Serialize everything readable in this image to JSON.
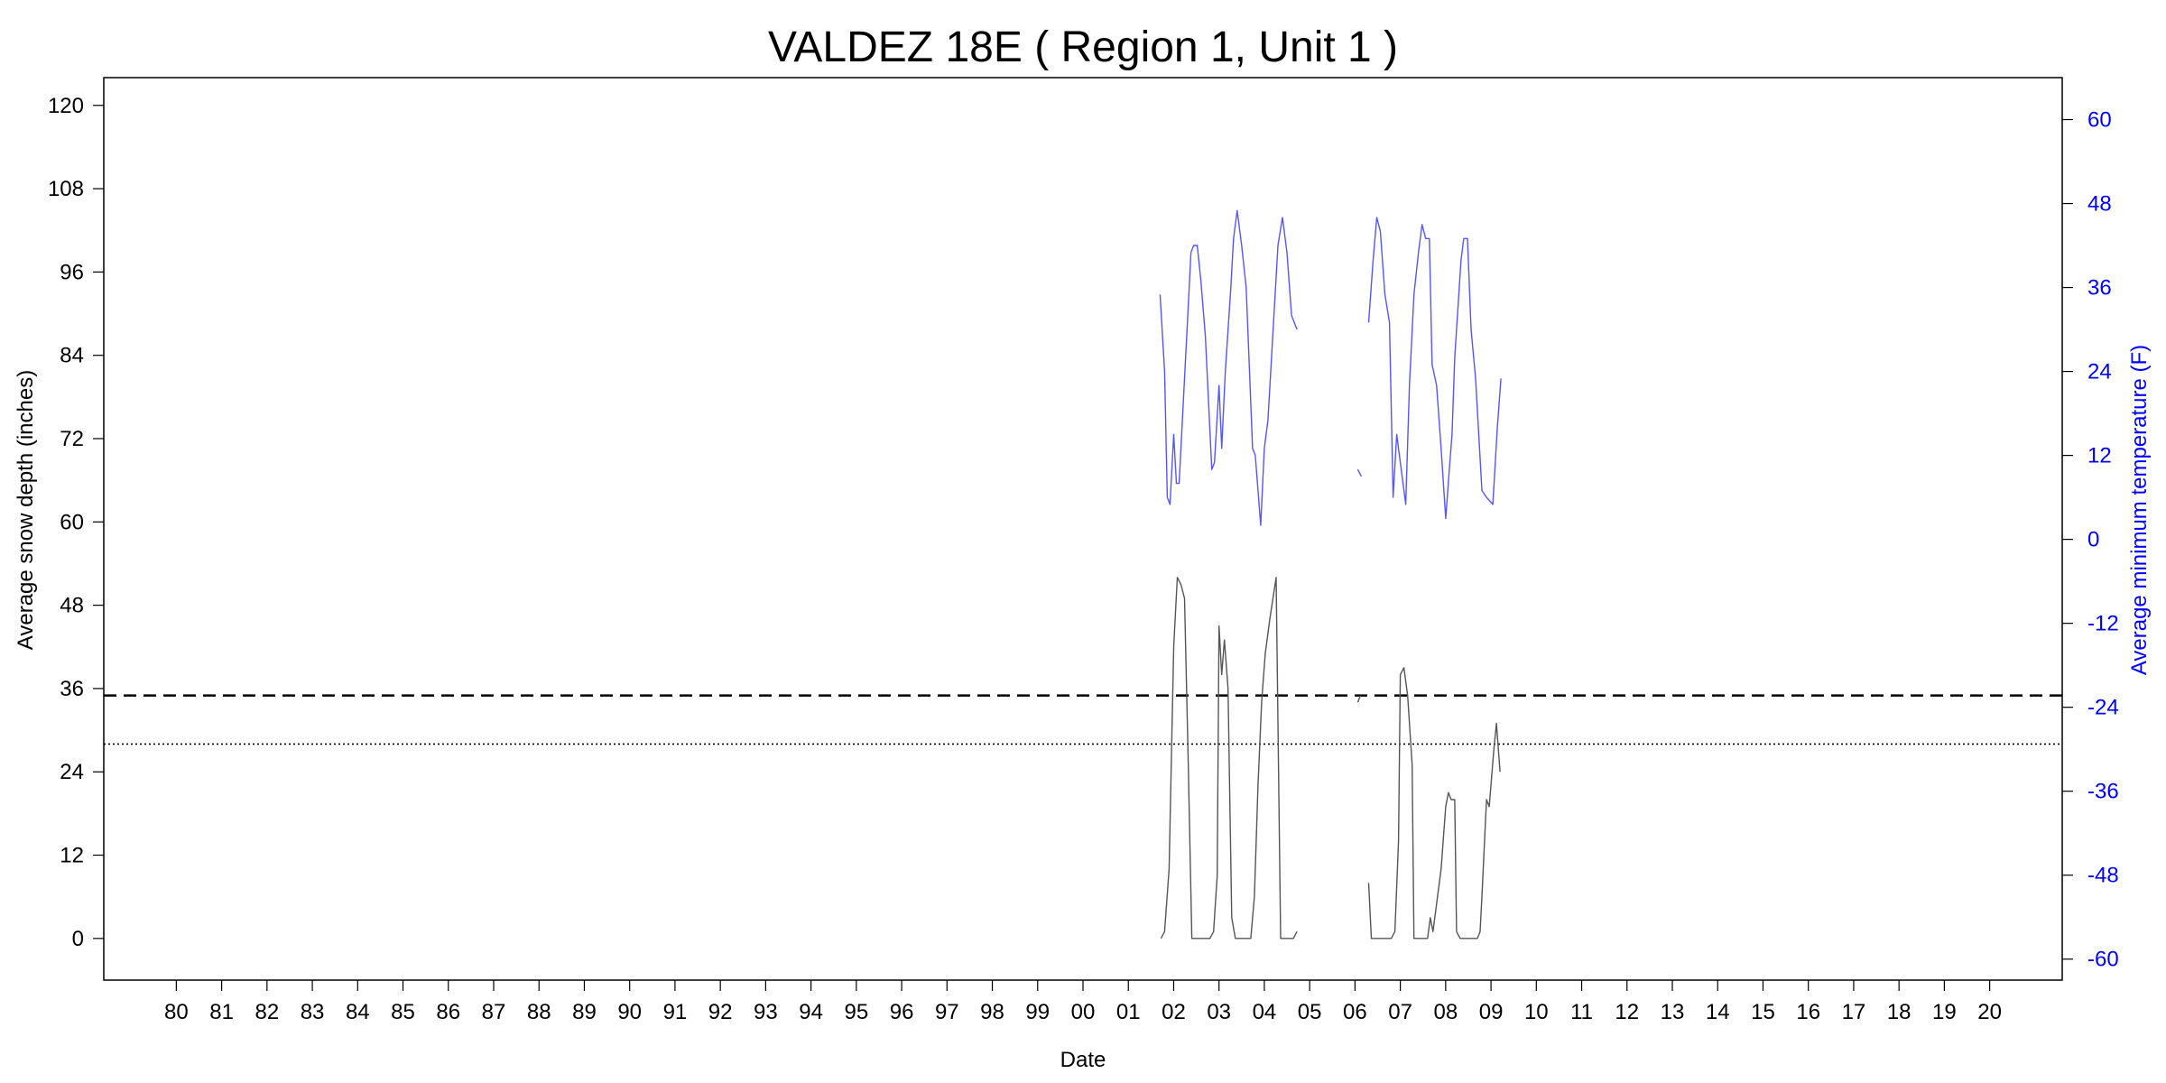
{
  "chart_data": {
    "type": "line",
    "title": "VALDEZ 18E ( Region 1, Unit 1 )",
    "xlabel": "Date",
    "ylabel": "Average snow depth (inches)",
    "y2label": "Average minimum temperature (F)",
    "x_tick_labels": [
      "80",
      "81",
      "82",
      "83",
      "84",
      "85",
      "86",
      "87",
      "88",
      "89",
      "90",
      "91",
      "92",
      "93",
      "94",
      "95",
      "96",
      "97",
      "98",
      "99",
      "00",
      "01",
      "02",
      "03",
      "04",
      "05",
      "06",
      "07",
      "08",
      "09",
      "10",
      "11",
      "12",
      "13",
      "14",
      "15",
      "16",
      "17",
      "18",
      "19",
      "20"
    ],
    "xlim": [
      1978.4,
      2021.6
    ],
    "ylim": [
      -6,
      124
    ],
    "y_ticks": [
      0,
      12,
      24,
      36,
      48,
      60,
      72,
      84,
      96,
      108,
      120
    ],
    "y2lim": [
      -63,
      66
    ],
    "y2_ticks": [
      -60,
      -48,
      -36,
      -24,
      -12,
      0,
      12,
      24,
      36,
      48,
      60
    ],
    "grid": false,
    "reference_lines": [
      {
        "y": 35,
        "style": "dashed",
        "color": "#000000"
      },
      {
        "y": 28,
        "style": "dotted",
        "color": "#000000"
      }
    ],
    "series": [
      {
        "axis": "left",
        "color": "#555555",
        "segments": [
          [
            [
              2001.72,
              0
            ],
            [
              2001.8,
              1
            ],
            [
              2001.9,
              10
            ],
            [
              2002.0,
              42
            ],
            [
              2002.08,
              52
            ],
            [
              2002.16,
              51
            ],
            [
              2002.24,
              49
            ],
            [
              2002.32,
              26
            ],
            [
              2002.4,
              0
            ],
            [
              2002.8,
              0
            ],
            [
              2002.88,
              1
            ],
            [
              2002.96,
              9
            ],
            [
              2003.0,
              45
            ],
            [
              2003.06,
              38
            ],
            [
              2003.12,
              43
            ],
            [
              2003.2,
              36
            ],
            [
              2003.28,
              3
            ],
            [
              2003.36,
              0
            ],
            [
              2003.7,
              0
            ],
            [
              2003.78,
              6
            ],
            [
              2003.86,
              22
            ],
            [
              2003.94,
              34
            ],
            [
              2004.02,
              41
            ],
            [
              2004.12,
              46
            ],
            [
              2004.26,
              52
            ],
            [
              2004.36,
              0
            ],
            [
              2004.64,
              0
            ],
            [
              2004.72,
              1
            ]
          ],
          [
            [
              2006.06,
              34
            ],
            [
              2006.12,
              35
            ]
          ],
          [
            [
              2006.3,
              8
            ],
            [
              2006.36,
              0
            ],
            [
              2006.8,
              0
            ],
            [
              2006.88,
              1
            ],
            [
              2006.96,
              14
            ],
            [
              2007.0,
              38
            ],
            [
              2007.08,
              39
            ],
            [
              2007.16,
              35
            ],
            [
              2007.26,
              25
            ],
            [
              2007.3,
              0
            ],
            [
              2007.6,
              0
            ],
            [
              2007.66,
              3
            ],
            [
              2007.72,
              1
            ],
            [
              2007.8,
              5
            ],
            [
              2007.9,
              10
            ],
            [
              2008.0,
              19
            ],
            [
              2008.06,
              21
            ],
            [
              2008.12,
              20
            ],
            [
              2008.2,
              20
            ],
            [
              2008.24,
              1
            ],
            [
              2008.32,
              0
            ],
            [
              2008.7,
              0
            ],
            [
              2008.76,
              1
            ],
            [
              2008.8,
              6
            ],
            [
              2008.9,
              20
            ],
            [
              2008.96,
              19
            ],
            [
              2009.06,
              27
            ],
            [
              2009.12,
              31
            ],
            [
              2009.2,
              24
            ]
          ]
        ]
      },
      {
        "axis": "right",
        "color": "#5555ff",
        "segments": [
          [
            [
              2001.7,
              35
            ],
            [
              2001.8,
              24
            ],
            [
              2001.86,
              6
            ],
            [
              2001.92,
              5
            ],
            [
              2002.0,
              15
            ],
            [
              2002.06,
              8
            ],
            [
              2002.12,
              8
            ],
            [
              2002.2,
              18
            ],
            [
              2002.32,
              33
            ],
            [
              2002.38,
              41
            ],
            [
              2002.44,
              42
            ],
            [
              2002.52,
              42
            ],
            [
              2002.6,
              37
            ],
            [
              2002.7,
              29
            ],
            [
              2002.84,
              10
            ],
            [
              2002.9,
              11
            ],
            [
              2003.0,
              22
            ],
            [
              2003.06,
              13
            ],
            [
              2003.14,
              24
            ],
            [
              2003.26,
              36
            ],
            [
              2003.32,
              43
            ],
            [
              2003.4,
              47
            ],
            [
              2003.5,
              42
            ],
            [
              2003.6,
              36
            ],
            [
              2003.74,
              13
            ],
            [
              2003.8,
              12
            ],
            [
              2003.92,
              2
            ],
            [
              2004.0,
              13
            ],
            [
              2004.08,
              17
            ],
            [
              2004.22,
              33
            ],
            [
              2004.3,
              42
            ],
            [
              2004.4,
              46
            ],
            [
              2004.5,
              41
            ],
            [
              2004.6,
              32
            ],
            [
              2004.72,
              30
            ]
          ],
          [
            [
              2006.06,
              10
            ],
            [
              2006.14,
              9
            ]
          ],
          [
            [
              2006.3,
              31
            ],
            [
              2006.4,
              40
            ],
            [
              2006.48,
              46
            ],
            [
              2006.56,
              44
            ],
            [
              2006.66,
              35
            ],
            [
              2006.76,
              31
            ],
            [
              2006.84,
              6
            ],
            [
              2006.92,
              15
            ],
            [
              2007.0,
              11
            ],
            [
              2007.06,
              8
            ],
            [
              2007.12,
              5
            ],
            [
              2007.2,
              22
            ],
            [
              2007.3,
              35
            ],
            [
              2007.4,
              41
            ],
            [
              2007.48,
              45
            ],
            [
              2007.56,
              43
            ],
            [
              2007.64,
              43
            ],
            [
              2007.7,
              25
            ],
            [
              2007.8,
              22
            ],
            [
              2007.9,
              13
            ],
            [
              2008.0,
              3
            ],
            [
              2008.08,
              10
            ],
            [
              2008.14,
              15
            ],
            [
              2008.2,
              26
            ],
            [
              2008.34,
              40
            ],
            [
              2008.4,
              43
            ],
            [
              2008.48,
              43
            ],
            [
              2008.56,
              30
            ],
            [
              2008.66,
              23
            ],
            [
              2008.8,
              7
            ],
            [
              2008.9,
              6
            ],
            [
              2009.04,
              5
            ],
            [
              2009.14,
              16
            ],
            [
              2009.22,
              23
            ]
          ]
        ]
      }
    ]
  }
}
